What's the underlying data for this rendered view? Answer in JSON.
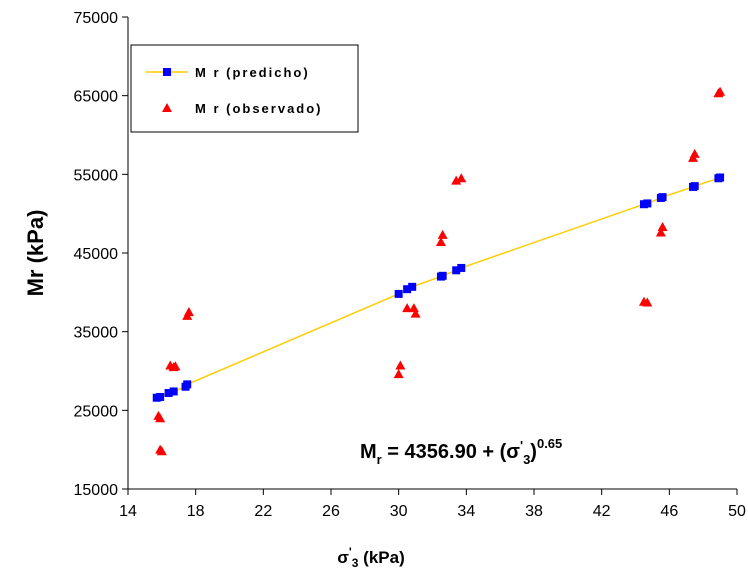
{
  "chart_data": {
    "type": "scatter",
    "xlabel": {
      "main": "σ",
      "prime": "'",
      "sub": "3",
      "rest": " (kPa)"
    },
    "ylabel": "Mr (kPa)",
    "xlim": [
      14,
      50
    ],
    "ylim": [
      15000,
      75000
    ],
    "xticks": [
      14,
      18,
      22,
      26,
      30,
      34,
      38,
      42,
      46,
      50
    ],
    "yticks": [
      15000,
      25000,
      35000,
      45000,
      55000,
      65000,
      75000
    ],
    "grid": false,
    "legend_position": "top-left",
    "series": [
      {
        "name": "M r (predicho)",
        "kind": "line-with-square-markers",
        "color": "#0000ff",
        "line_color": "#ffcc00",
        "x": [
          15.7,
          15.9,
          16.4,
          16.7,
          17.4,
          17.5,
          30.0,
          30.5,
          30.8,
          32.5,
          32.6,
          33.4,
          33.7,
          44.5,
          44.7,
          45.5,
          45.6,
          47.4,
          47.5,
          48.9,
          49.0
        ],
        "y": [
          26600,
          26700,
          27200,
          27400,
          28000,
          28300,
          39800,
          40400,
          40700,
          42000,
          42100,
          42800,
          43100,
          51200,
          51300,
          52000,
          52100,
          53400,
          53500,
          54500,
          54600
        ]
      },
      {
        "name": "M r (observado)",
        "kind": "triangle-markers",
        "color": "#ff0000",
        "x": [
          15.8,
          15.9,
          15.9,
          16.0,
          16.5,
          16.7,
          16.8,
          17.5,
          17.6,
          30.0,
          30.1,
          30.5,
          30.9,
          31.0,
          32.5,
          32.6,
          33.4,
          33.7,
          44.5,
          44.7,
          45.5,
          45.6,
          47.4,
          47.5,
          48.9,
          49.0
        ],
        "y": [
          24300,
          24000,
          20000,
          19800,
          30700,
          30500,
          30600,
          37000,
          37500,
          29600,
          30700,
          38000,
          38000,
          37300,
          46400,
          47300,
          54200,
          54500,
          38800,
          38700,
          47600,
          48300,
          57100,
          57600,
          65300,
          65500
        ]
      }
    ],
    "annotation": {
      "lhs": "M",
      "lhs_sub": "r",
      "middle": " = 4356.90 + (σ",
      "prime": "'",
      "sub": "3",
      "close": ")",
      "sup": "0.65"
    }
  }
}
